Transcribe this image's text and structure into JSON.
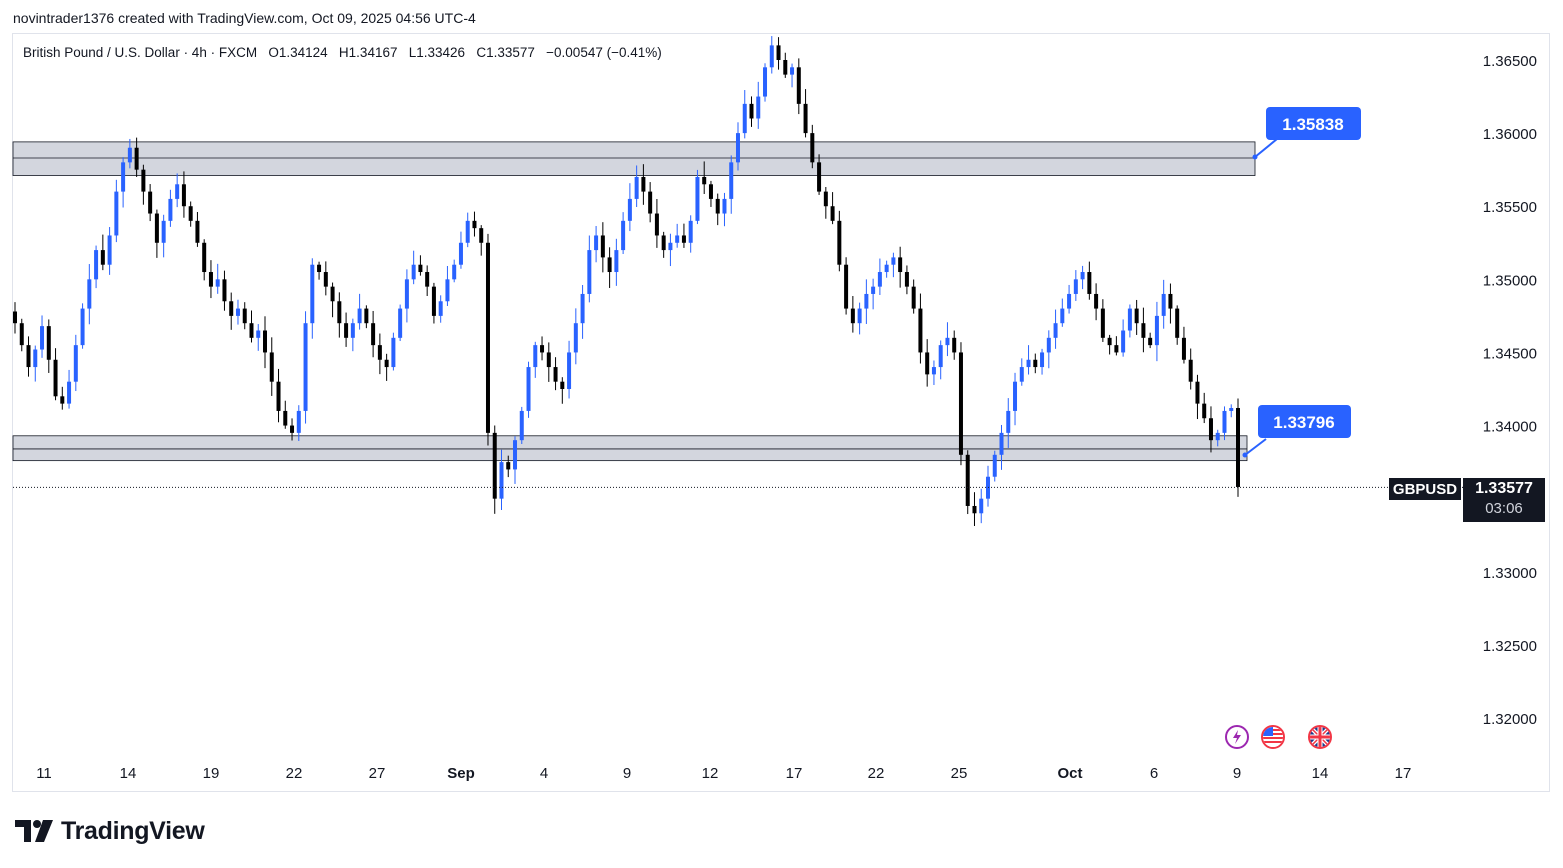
{
  "header": {
    "caption": "novintrader1376 created with TradingView.com, Oct 09, 2025 04:56 UTC-4"
  },
  "legend": {
    "instrument": "British Pound / U.S. Dollar · 4h · FXCM",
    "open": "O1.34124",
    "high": "H1.34167",
    "low": "L1.33426",
    "close": "C1.33577",
    "change": "−0.00547 (−0.41%)"
  },
  "price_scale": {
    "symbol": "GBPUSD",
    "last_price": "1.33577",
    "countdown": "03:06"
  },
  "callouts": {
    "upper": "1.35838",
    "lower": "1.33796"
  },
  "brand": {
    "name": "TradingView"
  },
  "colors": {
    "up_candle": "#2962ff",
    "down_candle": "#000000",
    "zone_fill": "#d1d4dc",
    "callout_bg": "#2962ff",
    "badge_bg": "#131722"
  },
  "events": [
    {
      "icon": "lightning-icon",
      "color": "#9c27b0"
    },
    {
      "icon": "us-flag-icon",
      "color": "#f23645"
    },
    {
      "icon": "uk-flag-icon",
      "color": "#f23645"
    }
  ],
  "chart_data": {
    "type": "candlestick",
    "timeframe": "4h",
    "y_ticks": [
      "1.36500",
      "1.36000",
      "1.35500",
      "1.35000",
      "1.34500",
      "1.34000",
      "1.33000",
      "1.32500",
      "1.32000"
    ],
    "y_tick_values": [
      1.365,
      1.36,
      1.355,
      1.35,
      1.345,
      1.34,
      1.33,
      1.325,
      1.32
    ],
    "ylim": [
      1.3175,
      1.368
    ],
    "x_ticks": [
      {
        "label": "11",
        "bold": false
      },
      {
        "label": "14",
        "bold": false
      },
      {
        "label": "19",
        "bold": false
      },
      {
        "label": "22",
        "bold": false
      },
      {
        "label": "27",
        "bold": false
      },
      {
        "label": "Sep",
        "bold": true
      },
      {
        "label": "4",
        "bold": false
      },
      {
        "label": "9",
        "bold": false
      },
      {
        "label": "12",
        "bold": false
      },
      {
        "label": "17",
        "bold": false
      },
      {
        "label": "22",
        "bold": false
      },
      {
        "label": "25",
        "bold": false
      },
      {
        "label": "Oct",
        "bold": true
      },
      {
        "label": "6",
        "bold": false
      },
      {
        "label": "9",
        "bold": false
      },
      {
        "label": "14",
        "bold": false
      },
      {
        "label": "17",
        "bold": false
      }
    ],
    "zones": [
      {
        "top": 1.3594,
        "mid": 1.3583,
        "bottom": 1.3571
      },
      {
        "top": 1.3393,
        "mid": 1.3384,
        "bottom": 1.3376
      }
    ],
    "last_price": 1.33577,
    "closes": [
      1.347,
      1.3455,
      1.344,
      1.3452,
      1.3468,
      1.3445,
      1.342,
      1.3415,
      1.343,
      1.3455,
      1.348,
      1.35,
      1.352,
      1.351,
      1.353,
      1.356,
      1.358,
      1.359,
      1.3575,
      1.356,
      1.3545,
      1.3525,
      1.354,
      1.3555,
      1.3565,
      1.355,
      1.354,
      1.3525,
      1.3505,
      1.3495,
      1.35,
      1.3485,
      1.3475,
      1.348,
      1.347,
      1.346,
      1.3465,
      1.345,
      1.343,
      1.341,
      1.34,
      1.3395,
      1.341,
      1.347,
      1.351,
      1.3505,
      1.3495,
      1.3485,
      1.347,
      1.346,
      1.347,
      1.348,
      1.347,
      1.3455,
      1.3445,
      1.344,
      1.346,
      1.348,
      1.35,
      1.351,
      1.3505,
      1.3495,
      1.3475,
      1.3485,
      1.35,
      1.351,
      1.3525,
      1.354,
      1.3535,
      1.3525,
      1.3395,
      1.335,
      1.3375,
      1.337,
      1.339,
      1.341,
      1.344,
      1.3455,
      1.345,
      1.344,
      1.343,
      1.3425,
      1.345,
      1.347,
      1.349,
      1.352,
      1.353,
      1.3515,
      1.3505,
      1.352,
      1.354,
      1.3555,
      1.357,
      1.356,
      1.3545,
      1.353,
      1.352,
      1.3525,
      1.353,
      1.3525,
      1.354,
      1.357,
      1.3565,
      1.3555,
      1.3545,
      1.3555,
      1.358,
      1.36,
      1.362,
      1.361,
      1.3625,
      1.3645,
      1.366,
      1.365,
      1.364,
      1.3645,
      1.362,
      1.36,
      1.358,
      1.356,
      1.355,
      1.354,
      1.351,
      1.348,
      1.347,
      1.348,
      1.349,
      1.3495,
      1.3505,
      1.351,
      1.3515,
      1.3505,
      1.3495,
      1.348,
      1.345,
      1.3435,
      1.344,
      1.3455,
      1.346,
      1.345,
      1.338,
      1.3345,
      1.334,
      1.335,
      1.3365,
      1.338,
      1.3395,
      1.341,
      1.343,
      1.344,
      1.3445,
      1.344,
      1.345,
      1.346,
      1.347,
      1.348,
      1.349,
      1.35,
      1.3505,
      1.349,
      1.348,
      1.346,
      1.3455,
      1.345,
      1.3465,
      1.348,
      1.347,
      1.346,
      1.3455,
      1.3475,
      1.349,
      1.348,
      1.346,
      1.3445,
      1.343,
      1.3415,
      1.3405,
      1.339,
      1.3395,
      1.341,
      1.3412,
      1.3358
    ]
  }
}
